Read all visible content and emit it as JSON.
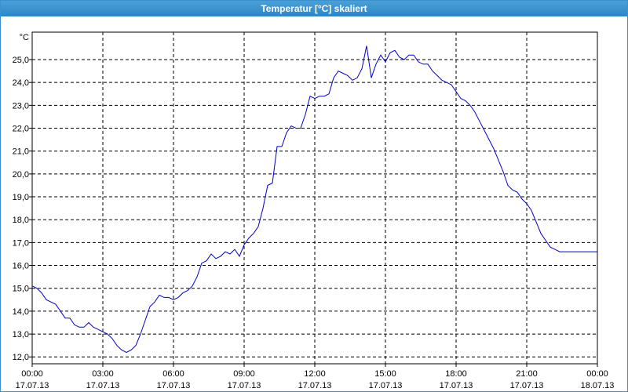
{
  "window": {
    "title": "Temperatur [°C] skaliert"
  },
  "chart_data": {
    "type": "line",
    "title": "Temperatur [°C] skaliert",
    "ylabel": "°C",
    "xlabel": "",
    "ylim": [
      11.7,
      26.2
    ],
    "xlim": [
      0,
      24
    ],
    "grid": true,
    "line_color": "#0000c8",
    "y_ticks": [
      12,
      13,
      14,
      15,
      16,
      17,
      18,
      19,
      20,
      21,
      22,
      23,
      24,
      25
    ],
    "y_tick_labels": [
      "12,0",
      "13,0",
      "14,0",
      "15,0",
      "16,0",
      "17,0",
      "18,0",
      "19,0",
      "20,0",
      "21,0",
      "22,0",
      "23,0",
      "24,0",
      "25,0"
    ],
    "x_ticks": [
      {
        "time": "00:00",
        "date": "17.07.13"
      },
      {
        "time": "03:00",
        "date": "17.07.13"
      },
      {
        "time": "06:00",
        "date": "17.07.13"
      },
      {
        "time": "09:00",
        "date": "17.07.13"
      },
      {
        "time": "12:00",
        "date": "17.07.13"
      },
      {
        "time": "15:00",
        "date": "17.07.13"
      },
      {
        "time": "18:00",
        "date": "17.07.13"
      },
      {
        "time": "21:00",
        "date": "17.07.13"
      },
      {
        "time": "00:00",
        "date": "18.07.13"
      }
    ],
    "series": [
      {
        "x": [
          0.0,
          0.2,
          0.4,
          0.6,
          0.8,
          1.0,
          1.2,
          1.4,
          1.6,
          1.8,
          2.0,
          2.2,
          2.4,
          2.6,
          2.8,
          3.0,
          3.2,
          3.4,
          3.6,
          3.8,
          4.0,
          4.2,
          4.4,
          4.6,
          4.8,
          5.0,
          5.2,
          5.4,
          5.6,
          5.8,
          6.0,
          6.2,
          6.4,
          6.6,
          6.8,
          7.0,
          7.2,
          7.4,
          7.6,
          7.8,
          8.0,
          8.2,
          8.4,
          8.6,
          8.8,
          9.0,
          9.2,
          9.4,
          9.6,
          9.8,
          10.0,
          10.2,
          10.4,
          10.6,
          10.8,
          11.0,
          11.2,
          11.4,
          11.6,
          11.8,
          12.0,
          12.2,
          12.4,
          12.6,
          12.8,
          13.0,
          13.2,
          13.4,
          13.6,
          13.8,
          14.0,
          14.2,
          14.4,
          14.6,
          14.8,
          15.0,
          15.2,
          15.4,
          15.6,
          15.8,
          16.0,
          16.2,
          16.4,
          16.6,
          16.8,
          17.0,
          17.2,
          17.4,
          17.6,
          17.8,
          18.0,
          18.2,
          18.4,
          18.6,
          18.8,
          19.0,
          19.2,
          19.4,
          19.6,
          19.8,
          20.0,
          20.2,
          20.4,
          20.6,
          20.8,
          21.0,
          21.2,
          21.4,
          21.6,
          21.8,
          22.0,
          22.2,
          22.4,
          22.6,
          22.8,
          23.0,
          23.2,
          23.4,
          23.6,
          23.8,
          24.0
        ],
        "y": [
          15.1,
          15.0,
          14.8,
          14.5,
          14.4,
          14.3,
          14.0,
          13.7,
          13.7,
          13.4,
          13.3,
          13.3,
          13.5,
          13.3,
          13.2,
          13.1,
          13.0,
          12.8,
          12.5,
          12.3,
          12.2,
          12.3,
          12.5,
          13.0,
          13.6,
          14.2,
          14.4,
          14.7,
          14.6,
          14.6,
          14.5,
          14.6,
          14.8,
          14.9,
          15.1,
          15.5,
          16.1,
          16.2,
          16.5,
          16.3,
          16.4,
          16.6,
          16.5,
          16.7,
          16.4,
          16.9,
          17.2,
          17.4,
          17.7,
          18.5,
          19.5,
          19.6,
          21.2,
          21.2,
          21.8,
          22.1,
          22.0,
          22.0,
          22.6,
          23.4,
          23.3,
          23.4,
          23.4,
          23.5,
          24.2,
          24.5,
          24.4,
          24.3,
          24.1,
          24.2,
          24.6,
          25.6,
          24.2,
          24.8,
          25.2,
          24.9,
          25.3,
          25.4,
          25.1,
          25.0,
          25.2,
          25.2,
          24.9,
          24.8,
          24.8,
          24.5,
          24.3,
          24.1,
          24.0,
          23.9,
          23.6,
          23.3,
          23.2,
          23.0,
          22.7,
          22.3,
          21.9,
          21.5,
          21.1,
          20.6,
          20.1,
          19.5,
          19.3,
          19.2,
          18.9,
          18.7,
          18.4,
          17.9,
          17.4,
          17.1,
          16.8,
          16.7,
          16.6,
          16.6,
          16.6,
          16.6,
          16.6,
          16.6,
          16.6,
          16.6,
          16.6
        ]
      }
    ]
  }
}
